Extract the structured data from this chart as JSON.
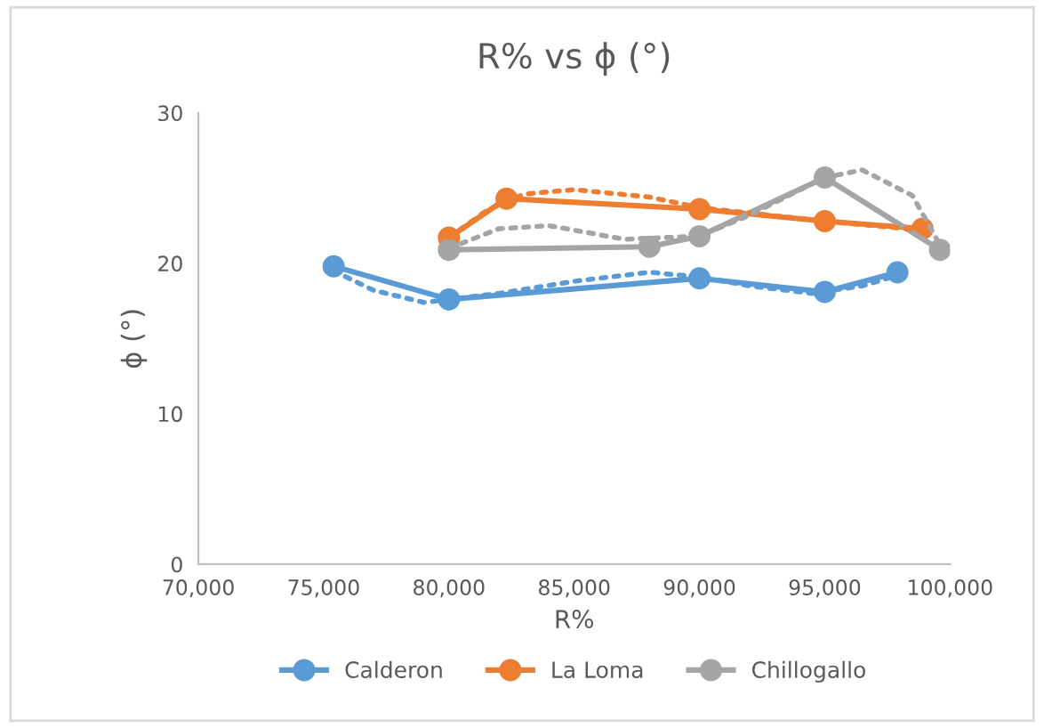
{
  "chart_data": {
    "type": "line",
    "title": "R% vs ϕ (°)",
    "xlabel": "R%",
    "ylabel": "ϕ (°)",
    "xlim": [
      70000,
      100000
    ],
    "xticks": [
      {
        "value": 70000,
        "label": "70,000"
      },
      {
        "value": 75000,
        "label": "75,000"
      },
      {
        "value": 80000,
        "label": "80,000"
      },
      {
        "value": 85000,
        "label": "85,000"
      },
      {
        "value": 90000,
        "label": "90,000"
      },
      {
        "value": 95000,
        "label": "95,000"
      },
      {
        "value": 100000,
        "label": "100,000"
      }
    ],
    "ylim": [
      0,
      30
    ],
    "yticks": [
      0,
      10,
      20,
      30
    ],
    "grid": false,
    "legend": "bottom",
    "marker": "circle",
    "line_style": "solid",
    "series": [
      {
        "name": "Calderon",
        "color": "#5b9bd5",
        "x": [
          75400,
          80000,
          90000,
          95000,
          97900
        ],
        "values": [
          19.8,
          17.6,
          19.0,
          18.1,
          19.4
        ]
      },
      {
        "name": "La Loma",
        "color": "#ed7d31",
        "x": [
          80000,
          82300,
          90000,
          95000,
          98900
        ],
        "values": [
          21.7,
          24.3,
          23.6,
          22.8,
          22.3
        ]
      },
      {
        "name": "Chillogallo",
        "color": "#a5a5a5",
        "x": [
          80000,
          88000,
          90000,
          95000,
          99600
        ],
        "values": [
          20.9,
          21.1,
          21.8,
          25.7,
          20.9
        ]
      },
      {
        "color": "#5b9bd5",
        "line_style": "dotted",
        "marker": "none",
        "x": [
          75400,
          77000,
          79000,
          82000,
          85000,
          88000,
          90000,
          92000,
          94500,
          96500,
          97900
        ],
        "values": [
          19.5,
          18.2,
          17.4,
          18.0,
          18.8,
          19.4,
          19.1,
          18.5,
          18.0,
          18.5,
          19.2
        ]
      },
      {
        "color": "#ed7d31",
        "line_style": "dotted",
        "marker": "none",
        "x": [
          80000,
          81500,
          83000,
          85000,
          88000,
          90000,
          95000,
          98900
        ],
        "values": [
          21.7,
          23.5,
          24.6,
          24.9,
          24.4,
          23.7,
          22.8,
          22.2
        ]
      },
      {
        "color": "#a5a5a5",
        "line_style": "dotted",
        "marker": "none",
        "x": [
          80000,
          82000,
          84000,
          87000,
          90000,
          92000,
          95000,
          96500,
          98500,
          99600
        ],
        "values": [
          21.0,
          22.3,
          22.5,
          21.6,
          21.8,
          23.2,
          25.7,
          26.2,
          24.5,
          21.2
        ]
      }
    ]
  }
}
